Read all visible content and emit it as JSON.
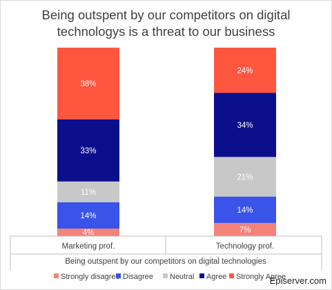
{
  "chart_data": {
    "type": "bar",
    "stacked": true,
    "title_lines": [
      "Being outspent by our competitors on digital",
      "technologys is a threat to our business"
    ],
    "categories": [
      "Marketing prof.",
      "Technology prof."
    ],
    "x_group_label": "Being outspent by our competitors on digital technologies",
    "series": [
      {
        "name": "Strongly disagree",
        "values": [
          4,
          7
        ],
        "labels": [
          "4%",
          "7%"
        ],
        "color": "#f4837a"
      },
      {
        "name": "Disagree",
        "values": [
          14,
          14
        ],
        "labels": [
          "14%",
          "14%"
        ],
        "color": "#3a53e8"
      },
      {
        "name": "Neutral",
        "values": [
          11,
          21
        ],
        "labels": [
          "11%",
          "21%"
        ],
        "color": "#c8c8c8"
      },
      {
        "name": "Agree",
        "values": [
          33,
          34
        ],
        "labels": [
          "33%",
          "34%"
        ],
        "color": "#0c0f8c"
      },
      {
        "name": "Strongly Agree",
        "values": [
          38,
          24
        ],
        "labels": [
          "38%",
          "24%"
        ],
        "color": "#ff5640"
      }
    ],
    "ylim": [
      0,
      100
    ],
    "grid": false,
    "legend_position": "bottom"
  },
  "watermark": "Episerver.com"
}
